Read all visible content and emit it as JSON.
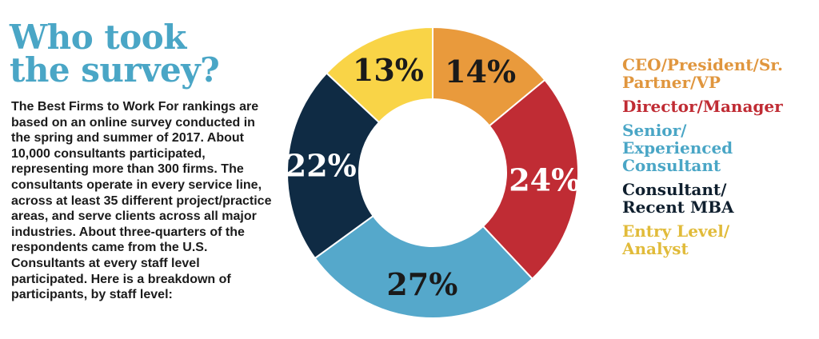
{
  "title": {
    "line1": "Who took",
    "line2": "the survey?"
  },
  "description": "The Best Firms to Work For rankings are based on an online survey conducted in the spring and summer of 2017. About 10,000 consultants participated, representing more than 300 firms. The consultants operate in every service line, across at least 35 different project/practice areas, and serve clients across all major industries. About three-quarters of the respondents came from the U.S. Consultants at every staff level participated. Here is a breakdown of participants, by staff level:",
  "colors": {
    "title": "#4aa6c6",
    "text": "#1b1b1b"
  },
  "chart_data": {
    "type": "pie",
    "donut": true,
    "unit": "%",
    "categories": [
      "CEO/President/Sr. Partner/VP",
      "Director/Manager",
      "Senior/ Experienced Consultant",
      "Consultant/ Recent MBA",
      "Entry Level/ Analyst"
    ],
    "values": [
      14,
      24,
      27,
      22,
      13
    ],
    "labels": [
      "14%",
      "24%",
      "27%",
      "22%",
      "13%"
    ],
    "colors": [
      "#e99a3c",
      "#c02c34",
      "#55a8cb",
      "#0f2b44",
      "#f9d447"
    ],
    "label_colors": [
      "#1a1a1a",
      "#ffffff",
      "#1a1a1a",
      "#ffffff",
      "#1a1a1a"
    ],
    "legend_colors": [
      "#e0963e",
      "#c02c34",
      "#4aa6c6",
      "#0f1f2e",
      "#e1bb3a"
    ],
    "legend": {
      "position": "right",
      "items": [
        {
          "line1": "CEO/President/Sr.",
          "line2": "Partner/VP"
        },
        {
          "line1": "Director/Manager"
        },
        {
          "line1": "Senior/",
          "line2": "Experienced",
          "line3": "Consultant"
        },
        {
          "line1": "Consultant/",
          "line2": "Recent MBA"
        },
        {
          "line1": "Entry Level/",
          "line2": "Analyst"
        }
      ]
    }
  }
}
